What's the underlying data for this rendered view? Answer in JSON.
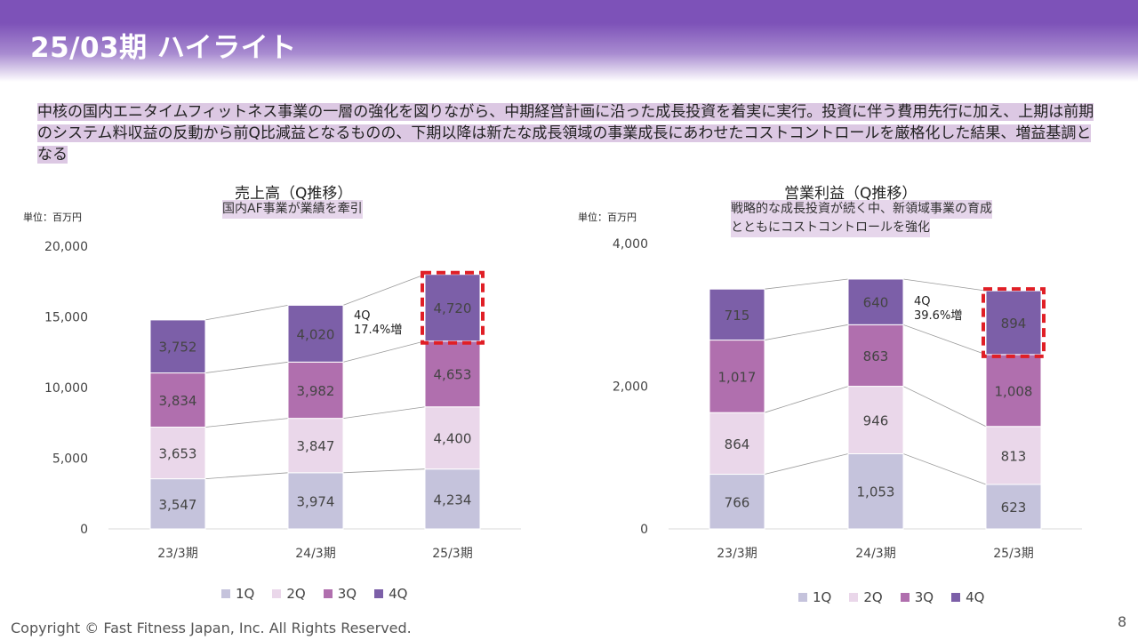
{
  "header": {
    "title": "25/03期 ハイライト"
  },
  "summary": "中核の国内エニタイムフィットネス事業の一層の強化を図りながら、中期経営計画に沿った成長投資を着実に実行。投資に伴う費用先行に加え、上期は前期のシステム料収益の反動から前Q比減益となるものの、下期以降は新たな成長領域の事業成長にあわせたコストコントロールを厳格化した結果、増益基調となる",
  "colors": {
    "1Q": "#c5c3dc",
    "2Q": "#ead7ea",
    "3Q": "#b06fae",
    "4Q": "#7c5fa8",
    "highlight": "#e01f26",
    "header": "#7d52b8"
  },
  "legend": [
    "1Q",
    "2Q",
    "3Q",
    "4Q"
  ],
  "footer": {
    "copyright": "Copyright © Fast Fitness Japan, Inc. All Rights Reserved.",
    "page": "8"
  },
  "chart_data": [
    {
      "type": "bar",
      "stacked": true,
      "title": "売上高（Q推移）",
      "subtitle": "国内AF事業が業績を牽引",
      "unit": "単位：百万円",
      "categories": [
        "23/3期",
        "24/3期",
        "25/3期"
      ],
      "series": [
        {
          "name": "1Q",
          "values": [
            3547,
            3974,
            4234
          ]
        },
        {
          "name": "2Q",
          "values": [
            3653,
            3847,
            4400
          ]
        },
        {
          "name": "3Q",
          "values": [
            3834,
            3982,
            4653
          ]
        },
        {
          "name": "4Q",
          "values": [
            3752,
            4020,
            4720
          ]
        }
      ],
      "value_labels": [
        [
          "3,547",
          "3,974",
          "4,234"
        ],
        [
          "3,653",
          "3,847",
          "4,400"
        ],
        [
          "3,834",
          "3,982",
          "4,653"
        ],
        [
          "3,752",
          "4,020",
          "4,720"
        ]
      ],
      "yticks": [
        "0",
        "5,000",
        "10,000",
        "15,000",
        "20,000"
      ],
      "ylim": [
        0,
        20000
      ],
      "annotation": {
        "line1": "4Q",
        "line2": "17.4%増"
      },
      "highlight": {
        "series": "4Q",
        "category": "25/3期"
      }
    },
    {
      "type": "bar",
      "stacked": true,
      "title": "営業利益（Q推移）",
      "subtitle": [
        "戦略的な成長投資が続く中、新領域事業の育成",
        "とともにコストコントロールを強化"
      ],
      "unit": "単位：百万円",
      "categories": [
        "23/3期",
        "24/3期",
        "25/3期"
      ],
      "series": [
        {
          "name": "1Q",
          "values": [
            766,
            1053,
            623
          ]
        },
        {
          "name": "2Q",
          "values": [
            864,
            946,
            813
          ]
        },
        {
          "name": "3Q",
          "values": [
            1017,
            863,
            1008
          ]
        },
        {
          "name": "4Q",
          "values": [
            715,
            640,
            894
          ]
        }
      ],
      "value_labels": [
        [
          "766",
          "1,053",
          "623"
        ],
        [
          "864",
          "946",
          "813"
        ],
        [
          "1,017",
          "863",
          "1,008"
        ],
        [
          "715",
          "640",
          "894"
        ]
      ],
      "yticks": [
        "0",
        "2,000",
        "4,000"
      ],
      "ylim": [
        0,
        4000
      ],
      "annotation": {
        "line1": "4Q",
        "line2": "39.6%増"
      },
      "highlight": {
        "series": "4Q",
        "category": "25/3期"
      }
    }
  ]
}
